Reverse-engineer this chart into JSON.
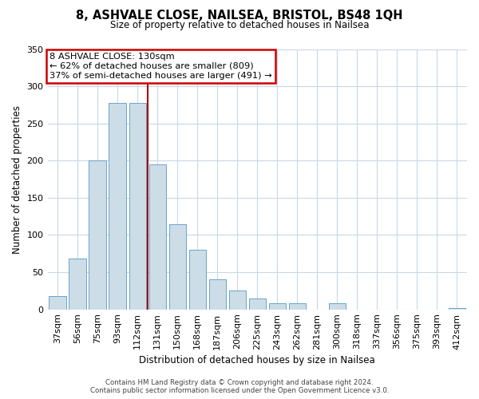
{
  "title": "8, ASHVALE CLOSE, NAILSEA, BRISTOL, BS48 1QH",
  "subtitle": "Size of property relative to detached houses in Nailsea",
  "xlabel": "Distribution of detached houses by size in Nailsea",
  "ylabel": "Number of detached properties",
  "bar_labels": [
    "37sqm",
    "56sqm",
    "75sqm",
    "93sqm",
    "112sqm",
    "131sqm",
    "150sqm",
    "168sqm",
    "187sqm",
    "206sqm",
    "225sqm",
    "243sqm",
    "262sqm",
    "281sqm",
    "300sqm",
    "318sqm",
    "337sqm",
    "356sqm",
    "375sqm",
    "393sqm",
    "412sqm"
  ],
  "bar_values": [
    18,
    68,
    200,
    278,
    278,
    195,
    115,
    80,
    40,
    25,
    15,
    8,
    8,
    0,
    8,
    0,
    0,
    0,
    0,
    0,
    2
  ],
  "highlight_line_index": 5,
  "bar_color": "#ccdde8",
  "bar_edge_color": "#6ba3c8",
  "highlight_line_color": "#aa0000",
  "ylim": [
    0,
    350
  ],
  "yticks": [
    0,
    50,
    100,
    150,
    200,
    250,
    300,
    350
  ],
  "annotation_title": "8 ASHVALE CLOSE: 130sqm",
  "annotation_line1": "← 62% of detached houses are smaller (809)",
  "annotation_line2": "37% of semi-detached houses are larger (491) →",
  "footer1": "Contains HM Land Registry data © Crown copyright and database right 2024.",
  "footer2": "Contains public sector information licensed under the Open Government Licence v3.0.",
  "background_color": "#ffffff",
  "grid_color": "#c8d8e8"
}
